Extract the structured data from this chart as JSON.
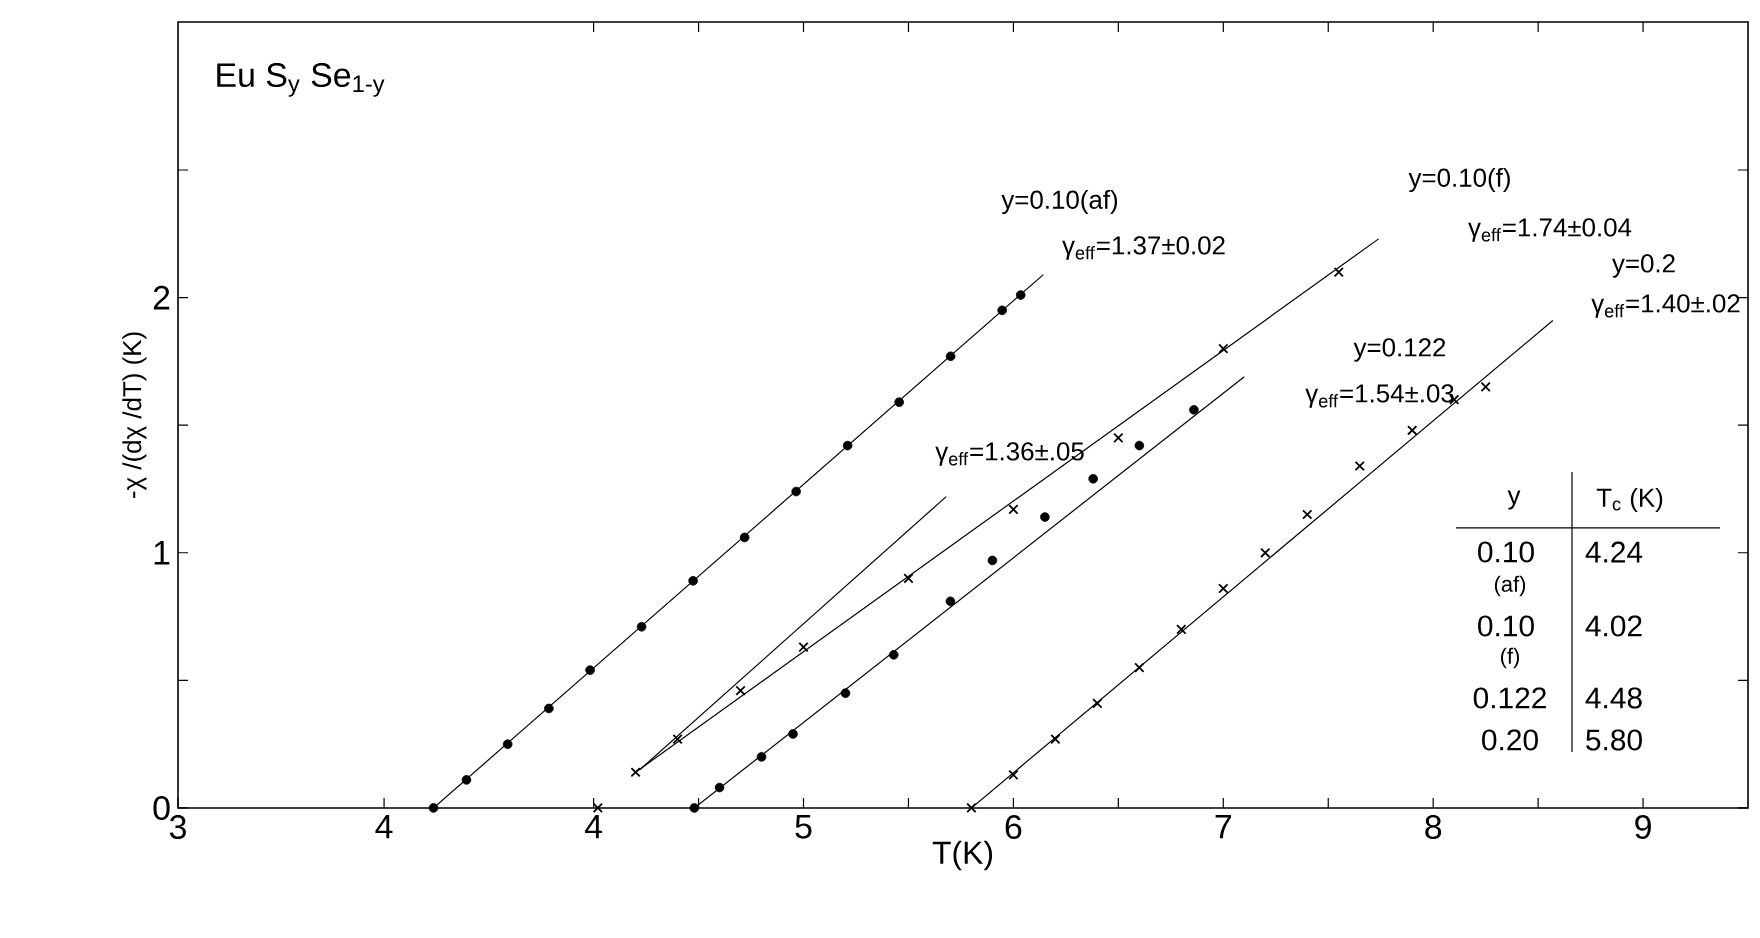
{
  "chart_data": {
    "type": "scatter",
    "xlabel": "T(K)",
    "ylabel": "-χ /(dχ /dT) (K)",
    "xlim": [
      2.02,
      9.5
    ],
    "xticks": [
      4,
      {
        "value": 4.5,
        "label": null
      },
      5,
      {
        "value": 5.5,
        "label": null
      },
      6,
      {
        "value": 6.5,
        "label": null
      },
      7,
      {
        "value": 7.5,
        "label": null
      },
      8,
      {
        "value": 8.5,
        "label": null
      },
      9
    ],
    "x2lim": [
      3,
      10.62
    ],
    "x2ticks": [
      3,
      4
    ],
    "ylim": [
      0,
      3.08
    ],
    "yticks": [
      0,
      {
        "value": 0.5,
        "label": null
      },
      1,
      {
        "value": 1.5,
        "label": null
      },
      2,
      {
        "value": 2.5,
        "label": null
      }
    ],
    "grid": false,
    "series": [
      {
        "axis": "x2",
        "marker": "circle",
        "color": "#000000",
        "x": [
          4.24,
          4.4,
          4.6,
          4.8,
          5.0,
          5.25,
          5.5,
          5.75,
          6.0,
          6.25,
          6.5,
          6.75,
          7.0,
          7.09
        ],
        "values": [
          0,
          0.11,
          0.25,
          0.39,
          0.54,
          0.71,
          0.89,
          1.06,
          1.24,
          1.42,
          1.59,
          1.77,
          1.95,
          2.01
        ]
      },
      {
        "type": "line",
        "axis": "x2",
        "color": "#000000",
        "x": [
          4.24,
          7.2
        ],
        "values": [
          0,
          2.09
        ]
      },
      {
        "marker": "cross",
        "color": "#000000",
        "x": [
          4.02,
          4.2,
          4.4,
          4.7,
          5.0,
          5.5,
          6.0,
          6.5,
          7.0,
          7.55
        ],
        "values": [
          0,
          0.14,
          0.27,
          0.46,
          0.63,
          0.9,
          1.17,
          1.45,
          1.8,
          2.1
        ]
      },
      {
        "type": "line",
        "color": "#000000",
        "x": [
          4.2,
          7.74
        ],
        "values": [
          0.14,
          2.23
        ]
      },
      {
        "type": "line",
        "color": "#000000",
        "x": [
          4.22,
          5.68
        ],
        "values": [
          0.15,
          1.22
        ]
      },
      {
        "marker": "circle",
        "color": "#000000",
        "x": [
          4.48,
          4.6,
          4.8,
          4.95,
          5.2,
          5.43,
          5.7,
          5.9,
          6.15,
          6.38,
          6.6,
          6.86
        ],
        "values": [
          0,
          0.08,
          0.2,
          0.29,
          0.45,
          0.6,
          0.81,
          0.97,
          1.14,
          1.29,
          1.42,
          1.56
        ]
      },
      {
        "type": "line",
        "color": "#000000",
        "x": [
          4.48,
          7.1
        ],
        "values": [
          0,
          1.69
        ]
      },
      {
        "marker": "cross",
        "color": "#000000",
        "x": [
          5.8,
          6.0,
          6.2,
          6.4,
          6.6,
          6.8,
          7.0,
          7.2,
          7.4,
          7.65,
          7.9,
          8.1,
          8.25
        ],
        "values": [
          0,
          0.13,
          0.27,
          0.41,
          0.55,
          0.7,
          0.86,
          1.0,
          1.15,
          1.34,
          1.48,
          1.6,
          1.65
        ]
      },
      {
        "type": "line",
        "color": "#000000",
        "x": [
          5.8,
          8.57
        ],
        "values": [
          0,
          1.91
        ]
      }
    ],
    "annotations": [
      "Eu S$_{y}$ Se$_{1-y}$",
      "y=0.10(af)",
      "γ$_{eff}$=1.37±0.02",
      "y=0.10(f)",
      "γ$_{eff}$=1.74±0.04",
      "γ$_{eff}$=1.36±.05",
      "y=0.122",
      "γ$_{eff}$=1.54±.03",
      "y=0.2",
      "γ$_{eff}$=1.40±.02",
      "y",
      "T$_{c}$ (K)",
      "0.10",
      "(af)",
      "4.24",
      "0.10",
      "(f)",
      "4.02",
      "0.122",
      "4.48",
      "0.20",
      "5.80"
    ]
  }
}
